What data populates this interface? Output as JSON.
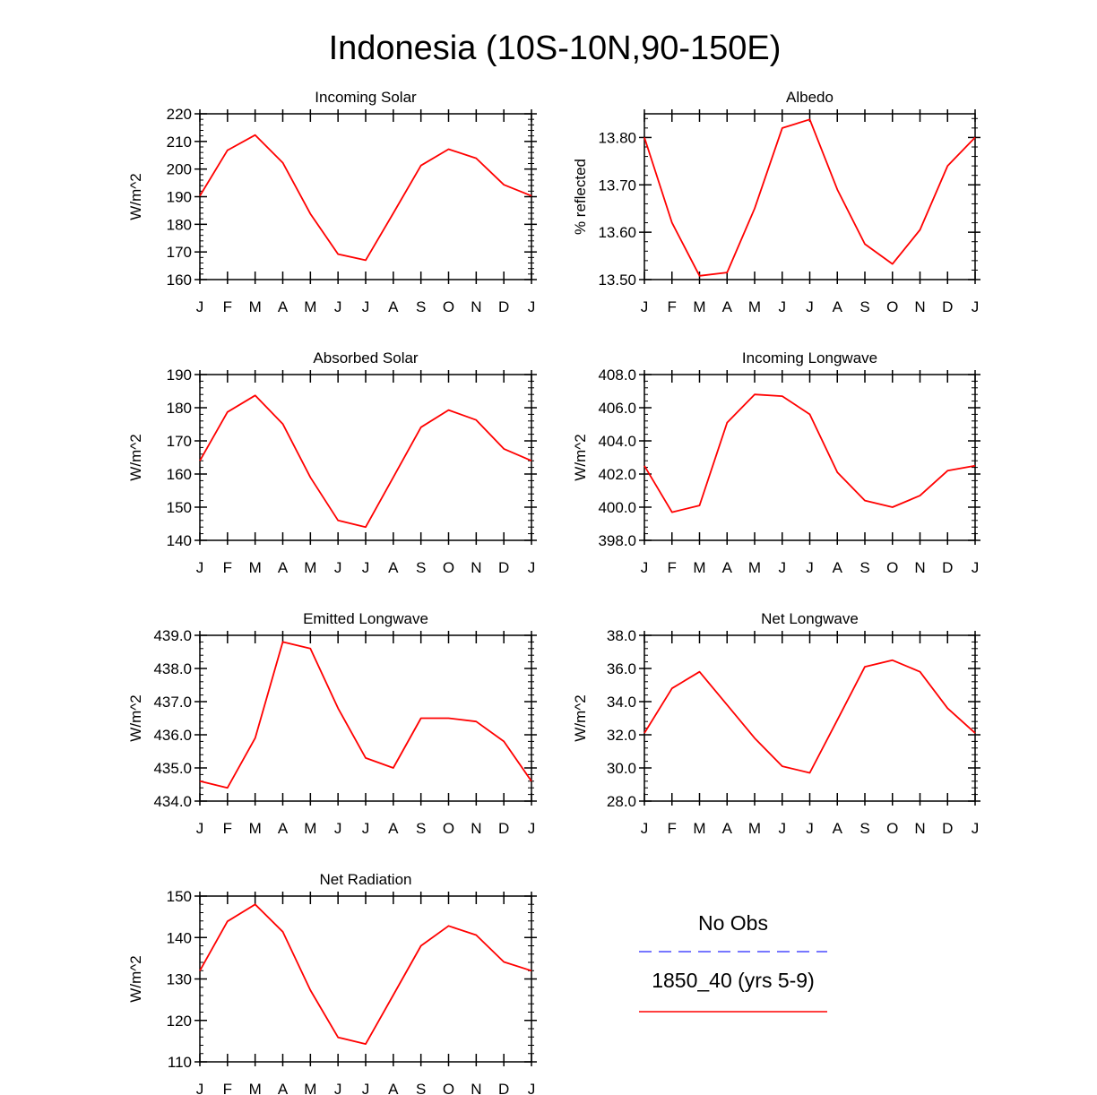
{
  "page": {
    "title": "Indonesia (10S-10N,90-150E)"
  },
  "legend": {
    "obs_label": "No Obs",
    "obs_color": "#4a4aff",
    "model_label": "1850_40 (yrs 5-9)",
    "model_color": "#ff0000"
  },
  "chart_data": [
    {
      "type": "line",
      "title": "Incoming Solar",
      "ylabel": "W/m^2",
      "categories": [
        "J",
        "F",
        "M",
        "A",
        "M",
        "J",
        "J",
        "A",
        "S",
        "O",
        "N",
        "D",
        "J"
      ],
      "ylim": [
        160,
        220
      ],
      "yticks": [
        160,
        170,
        180,
        190,
        200,
        210,
        220
      ],
      "ytick_labels": [
        "160",
        "170",
        "180",
        "190",
        "200",
        "210",
        "220"
      ],
      "series": [
        {
          "values": [
            190.3,
            206.8,
            212.3,
            202.3,
            183.8,
            169.2,
            167.0,
            184.0,
            201.3,
            207.2,
            203.9,
            194.3,
            190.3
          ]
        }
      ]
    },
    {
      "type": "line",
      "title": "Albedo",
      "ylabel": "% reflected",
      "categories": [
        "J",
        "F",
        "M",
        "A",
        "M",
        "J",
        "J",
        "A",
        "S",
        "O",
        "N",
        "D",
        "J"
      ],
      "ylim": [
        13.5,
        13.85
      ],
      "yticks": [
        13.5,
        13.6,
        13.7,
        13.8
      ],
      "ytick_labels": [
        "13.50",
        "13.60",
        "13.70",
        "13.80"
      ],
      "series": [
        {
          "values": [
            13.8,
            13.62,
            13.508,
            13.515,
            13.65,
            13.82,
            13.838,
            13.69,
            13.575,
            13.533,
            13.605,
            13.74,
            13.8
          ]
        }
      ]
    },
    {
      "type": "line",
      "title": "Absorbed Solar",
      "ylabel": "W/m^2",
      "categories": [
        "J",
        "F",
        "M",
        "A",
        "M",
        "J",
        "J",
        "A",
        "S",
        "O",
        "N",
        "D",
        "J"
      ],
      "ylim": [
        140,
        190
      ],
      "yticks": [
        140,
        150,
        160,
        170,
        180,
        190
      ],
      "ytick_labels": [
        "140",
        "150",
        "160",
        "170",
        "180",
        "190"
      ],
      "series": [
        {
          "values": [
            164.0,
            178.7,
            183.7,
            175.1,
            159.0,
            146.0,
            144.0,
            159.0,
            174.1,
            179.3,
            176.3,
            167.6,
            164.0
          ]
        }
      ]
    },
    {
      "type": "line",
      "title": "Incoming Longwave",
      "ylabel": "W/m^2",
      "categories": [
        "J",
        "F",
        "M",
        "A",
        "M",
        "J",
        "J",
        "A",
        "S",
        "O",
        "N",
        "D",
        "J"
      ],
      "ylim": [
        398,
        408
      ],
      "yticks": [
        398,
        400,
        402,
        404,
        406,
        408
      ],
      "ytick_labels": [
        "398.0",
        "400.0",
        "402.0",
        "404.0",
        "406.0",
        "408.0"
      ],
      "series": [
        {
          "values": [
            402.5,
            399.7,
            400.1,
            405.1,
            406.8,
            406.7,
            405.6,
            402.1,
            400.4,
            400.0,
            400.7,
            402.2,
            402.5
          ]
        }
      ]
    },
    {
      "type": "line",
      "title": "Emitted Longwave",
      "ylabel": "W/m^2",
      "categories": [
        "J",
        "F",
        "M",
        "A",
        "M",
        "J",
        "J",
        "A",
        "S",
        "O",
        "N",
        "D",
        "J"
      ],
      "ylim": [
        434,
        439
      ],
      "yticks": [
        434,
        435,
        436,
        437,
        438,
        439
      ],
      "ytick_labels": [
        "434.0",
        "435.0",
        "436.0",
        "437.0",
        "438.0",
        "439.0"
      ],
      "series": [
        {
          "values": [
            434.6,
            434.4,
            435.9,
            438.8,
            438.6,
            436.8,
            435.3,
            435.0,
            436.5,
            436.5,
            436.4,
            435.8,
            434.6
          ]
        }
      ]
    },
    {
      "type": "line",
      "title": "Net Longwave",
      "ylabel": "W/m^2",
      "categories": [
        "J",
        "F",
        "M",
        "A",
        "M",
        "J",
        "J",
        "A",
        "S",
        "O",
        "N",
        "D",
        "J"
      ],
      "ylim": [
        28,
        38
      ],
      "yticks": [
        28,
        30,
        32,
        34,
        36,
        38
      ],
      "ytick_labels": [
        "28.0",
        "30.0",
        "32.0",
        "34.0",
        "36.0",
        "38.0"
      ],
      "series": [
        {
          "values": [
            32.1,
            34.8,
            35.8,
            33.8,
            31.8,
            30.1,
            29.7,
            32.9,
            36.1,
            36.5,
            35.8,
            33.6,
            32.1
          ]
        }
      ]
    },
    {
      "type": "line",
      "title": "Net Radiation",
      "ylabel": "W/m^2",
      "categories": [
        "J",
        "F",
        "M",
        "A",
        "M",
        "J",
        "J",
        "A",
        "S",
        "O",
        "N",
        "D",
        "J"
      ],
      "ylim": [
        110,
        150
      ],
      "yticks": [
        110,
        120,
        130,
        140,
        150
      ],
      "ytick_labels": [
        "110",
        "120",
        "130",
        "140",
        "150"
      ],
      "series": [
        {
          "values": [
            132.0,
            143.9,
            148.0,
            141.4,
            127.3,
            115.9,
            114.3,
            126.1,
            138.0,
            142.8,
            140.6,
            134.1,
            132.0
          ]
        }
      ]
    }
  ]
}
